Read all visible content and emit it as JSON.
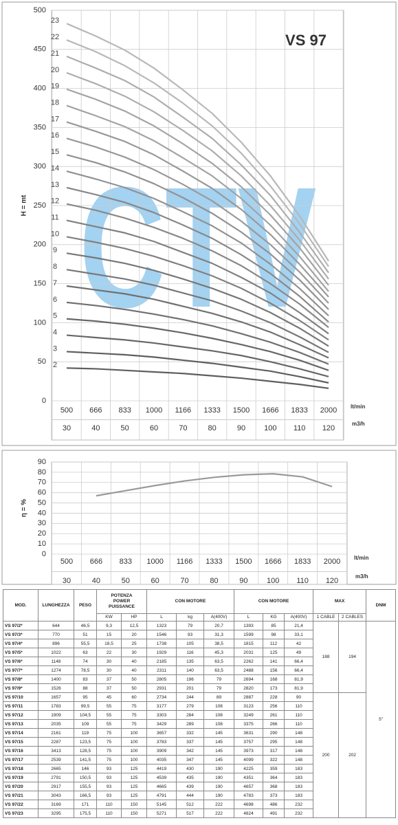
{
  "chart_data": [
    {
      "type": "line",
      "title": "VS 97",
      "watermark": "CTV",
      "y_label": "H = mt",
      "x_unit": "lt/min",
      "x2_unit": "m3/h",
      "categories": [
        "500",
        "666",
        "833",
        "1000",
        "1166",
        "1333",
        "1500",
        "1666",
        "1833",
        "2000"
      ],
      "categories2": [
        "30",
        "40",
        "50",
        "60",
        "70",
        "80",
        "90",
        "100",
        "110",
        "120"
      ],
      "ylim": [
        0,
        500
      ],
      "yticks": [
        0,
        50,
        100,
        150,
        200,
        250,
        300,
        350,
        400,
        450,
        500
      ],
      "grid": true,
      "series": [
        {
          "name": "2",
          "color": "#5e5e5e",
          "values": [
            42,
            41,
            39,
            37,
            35,
            32,
            29,
            25,
            21,
            16
          ]
        },
        {
          "name": "3",
          "color": "#5e5e5e",
          "values": [
            63,
            61,
            59,
            56,
            52,
            48,
            43,
            38,
            31,
            23
          ]
        },
        {
          "name": "4",
          "color": "#666666",
          "values": [
            84,
            81,
            78,
            74,
            69,
            64,
            58,
            50,
            41,
            31
          ]
        },
        {
          "name": "5",
          "color": "#666666",
          "values": [
            105,
            102,
            98,
            93,
            87,
            80,
            72,
            63,
            52,
            39
          ]
        },
        {
          "name": "6",
          "color": "#707070",
          "values": [
            126,
            122,
            117,
            111,
            104,
            96,
            86,
            75,
            62,
            47
          ]
        },
        {
          "name": "7",
          "color": "#707070",
          "values": [
            147,
            142,
            137,
            130,
            121,
            112,
            101,
            88,
            72,
            55
          ]
        },
        {
          "name": "8",
          "color": "#777777",
          "values": [
            168,
            162,
            156,
            148,
            138,
            128,
            115,
            100,
            82,
            62
          ]
        },
        {
          "name": "9",
          "color": "#777777",
          "values": [
            189,
            183,
            176,
            167,
            156,
            144,
            130,
            113,
            93,
            70
          ]
        },
        {
          "name": "10",
          "color": "#808080",
          "values": [
            210,
            203,
            195,
            185,
            173,
            160,
            144,
            125,
            103,
            78
          ]
        },
        {
          "name": "11",
          "color": "#808080",
          "values": [
            231,
            223,
            215,
            204,
            190,
            176,
            158,
            138,
            113,
            86
          ]
        },
        {
          "name": "12",
          "color": "#888888",
          "values": [
            252,
            244,
            234,
            222,
            208,
            192,
            173,
            150,
            124,
            94
          ]
        },
        {
          "name": "13",
          "color": "#888888",
          "values": [
            273,
            264,
            254,
            241,
            225,
            208,
            187,
            163,
            134,
            101
          ]
        },
        {
          "name": "14",
          "color": "#919191",
          "values": [
            294,
            284,
            273,
            259,
            242,
            224,
            202,
            175,
            144,
            109
          ]
        },
        {
          "name": "15",
          "color": "#919191",
          "values": [
            315,
            305,
            293,
            278,
            260,
            240,
            216,
            188,
            155,
            117
          ]
        },
        {
          "name": "16",
          "color": "#999999",
          "values": [
            336,
            325,
            312,
            296,
            277,
            256,
            230,
            200,
            165,
            125
          ]
        },
        {
          "name": "17",
          "color": "#999999",
          "values": [
            357,
            345,
            332,
            315,
            294,
            272,
            245,
            213,
            175,
            133
          ]
        },
        {
          "name": "18",
          "color": "#a3a3a3",
          "values": [
            378,
            365,
            351,
            333,
            311,
            288,
            259,
            225,
            185,
            140
          ]
        },
        {
          "name": "19",
          "color": "#a3a3a3",
          "values": [
            399,
            386,
            371,
            352,
            329,
            304,
            274,
            238,
            196,
            148
          ]
        },
        {
          "name": "20",
          "color": "#adadad",
          "values": [
            420,
            406,
            390,
            370,
            346,
            320,
            288,
            250,
            206,
            156
          ]
        },
        {
          "name": "21",
          "color": "#adadad",
          "values": [
            441,
            426,
            410,
            389,
            363,
            336,
            302,
            263,
            216,
            164
          ]
        },
        {
          "name": "22",
          "color": "#b8b8b8",
          "values": [
            462,
            447,
            429,
            407,
            381,
            352,
            317,
            275,
            227,
            172
          ]
        },
        {
          "name": "23",
          "color": "#b8b8b8",
          "values": [
            483,
            467,
            449,
            426,
            398,
            368,
            331,
            288,
            237,
            179
          ]
        }
      ]
    },
    {
      "type": "line",
      "y_label": "η = %",
      "x_unit": "lt/min",
      "x2_unit": "m3/h",
      "categories": [
        "500",
        "666",
        "833",
        "1000",
        "1166",
        "1333",
        "1500",
        "1666",
        "1833",
        "2000"
      ],
      "categories2": [
        "30",
        "40",
        "50",
        "60",
        "70",
        "80",
        "90",
        "100",
        "110",
        "120"
      ],
      "ylim": [
        0,
        90
      ],
      "yticks": [
        0,
        10,
        20,
        30,
        40,
        50,
        60,
        70,
        80,
        90
      ],
      "grid": true,
      "series": [
        {
          "color": "#999999",
          "values": [
            null,
            57,
            62,
            67,
            71.5,
            75,
            77.5,
            78.5,
            75.5,
            66
          ]
        }
      ]
    }
  ],
  "table": {
    "header": [
      "MOD.",
      "LUNGHEZZA",
      "PESO",
      "POTENZA\nPOWER\nPUISSANCE",
      "CON MOTORE",
      "CON MOTORE",
      "MAX",
      "DNM"
    ],
    "subheader": [
      "KW",
      "HP",
      "L",
      "kg",
      "A(400V)",
      "L",
      "KG",
      "A(400V)",
      "1 CABLE",
      "2 CABLES"
    ],
    "rows": [
      [
        "VS 97/2*",
        "644",
        "46,5",
        "9,3",
        "12,5",
        "1323",
        "79",
        "20,7",
        "1393",
        "85",
        "21,4",
        "188",
        "194",
        "5\""
      ],
      [
        "VS 97/3*",
        "770",
        "51",
        "15",
        "20",
        "1546",
        "93",
        "31,3",
        "1599",
        "98",
        "33,1",
        null,
        null,
        null
      ],
      [
        "VS 97/4*",
        "896",
        "55,5",
        "18,5",
        "25",
        "1738",
        "105",
        "38,5",
        "1815",
        "112",
        "42",
        null,
        null,
        null
      ],
      [
        "VS 97/5*",
        "1022",
        "63",
        "22",
        "30",
        "1929",
        "116",
        "45,3",
        "2031",
        "125",
        "49",
        null,
        null,
        null
      ],
      [
        "VS 97/6*",
        "1148",
        "74",
        "30",
        "40",
        "2185",
        "135",
        "63,5",
        "2262",
        "141",
        "66,4",
        null,
        null,
        null
      ],
      [
        "VS 97/7*",
        "1274",
        "78,5",
        "30",
        "40",
        "2311",
        "140",
        "63,5",
        "2488",
        "156",
        "66,4",
        null,
        null,
        null
      ],
      [
        "VS 97/8*",
        "1400",
        "83",
        "37",
        "50",
        "2805",
        "196",
        "79",
        "2694",
        "168",
        "81,9",
        null,
        null,
        null
      ],
      [
        "VS 97/9*",
        "1526",
        "88",
        "37",
        "50",
        "2931",
        "201",
        "79",
        "2820",
        "173",
        "81,9",
        null,
        null,
        null
      ],
      [
        "VS 97/10",
        "1657",
        "95",
        "45",
        "60",
        "2734",
        "244",
        "89",
        "2887",
        "228",
        "90",
        "200",
        "202",
        null
      ],
      [
        "VS 97/11",
        "1783",
        "99,5",
        "55",
        "75",
        "3177",
        "279",
        "108",
        "3123",
        "256",
        "110",
        null,
        null,
        null
      ],
      [
        "VS 97/12",
        "1909",
        "104,5",
        "55",
        "75",
        "3303",
        "284",
        "108",
        "3249",
        "261",
        "110",
        null,
        null,
        null
      ],
      [
        "VS 97/13",
        "2035",
        "109",
        "55",
        "75",
        "3429",
        "289",
        "108",
        "3375",
        "266",
        "110",
        null,
        null,
        null
      ],
      [
        "VS 97/14",
        "2161",
        "119",
        "75",
        "100",
        "3657",
        "332",
        "145",
        "3631",
        "290",
        "148",
        null,
        null,
        null
      ],
      [
        "VS 97/15",
        "2287",
        "123,5",
        "75",
        "100",
        "3783",
        "337",
        "145",
        "3757",
        "295",
        "148",
        null,
        null,
        null
      ],
      [
        "VS 97/16",
        "3413",
        "128,5",
        "75",
        "100",
        "3909",
        "342",
        "145",
        "3973",
        "317",
        "148",
        null,
        null,
        null
      ],
      [
        "VS 97/17",
        "2539",
        "141,5",
        "75",
        "100",
        "4035",
        "347",
        "145",
        "4099",
        "322",
        "148",
        null,
        null,
        null
      ],
      [
        "VS 97/18",
        "2665",
        "146",
        "93",
        "125",
        "4419",
        "430",
        "190",
        "4225",
        "359",
        "183",
        null,
        null,
        null
      ],
      [
        "VS 97/19",
        "2791",
        "150,5",
        "93",
        "125",
        "4539",
        "435",
        "190",
        "4351",
        "364",
        "183",
        null,
        null,
        null
      ],
      [
        "VS 97/20",
        "2917",
        "155,5",
        "93",
        "125",
        "4665",
        "439",
        "190",
        "4657",
        "368",
        "183",
        null,
        null,
        null
      ],
      [
        "VS 97/21",
        "3043",
        "166,5",
        "93",
        "125",
        "4791",
        "444",
        "190",
        "4783",
        "373",
        "183",
        null,
        null,
        null
      ],
      [
        "VS 97/22",
        "3169",
        "171",
        "110",
        "150",
        "5145",
        "512",
        "222",
        "4698",
        "486",
        "232",
        null,
        null,
        null
      ],
      [
        "VS 97/23",
        "3295",
        "175,5",
        "110",
        "150",
        "5271",
        "517",
        "222",
        "4824",
        "491",
        "232",
        null,
        null,
        null
      ]
    ]
  }
}
